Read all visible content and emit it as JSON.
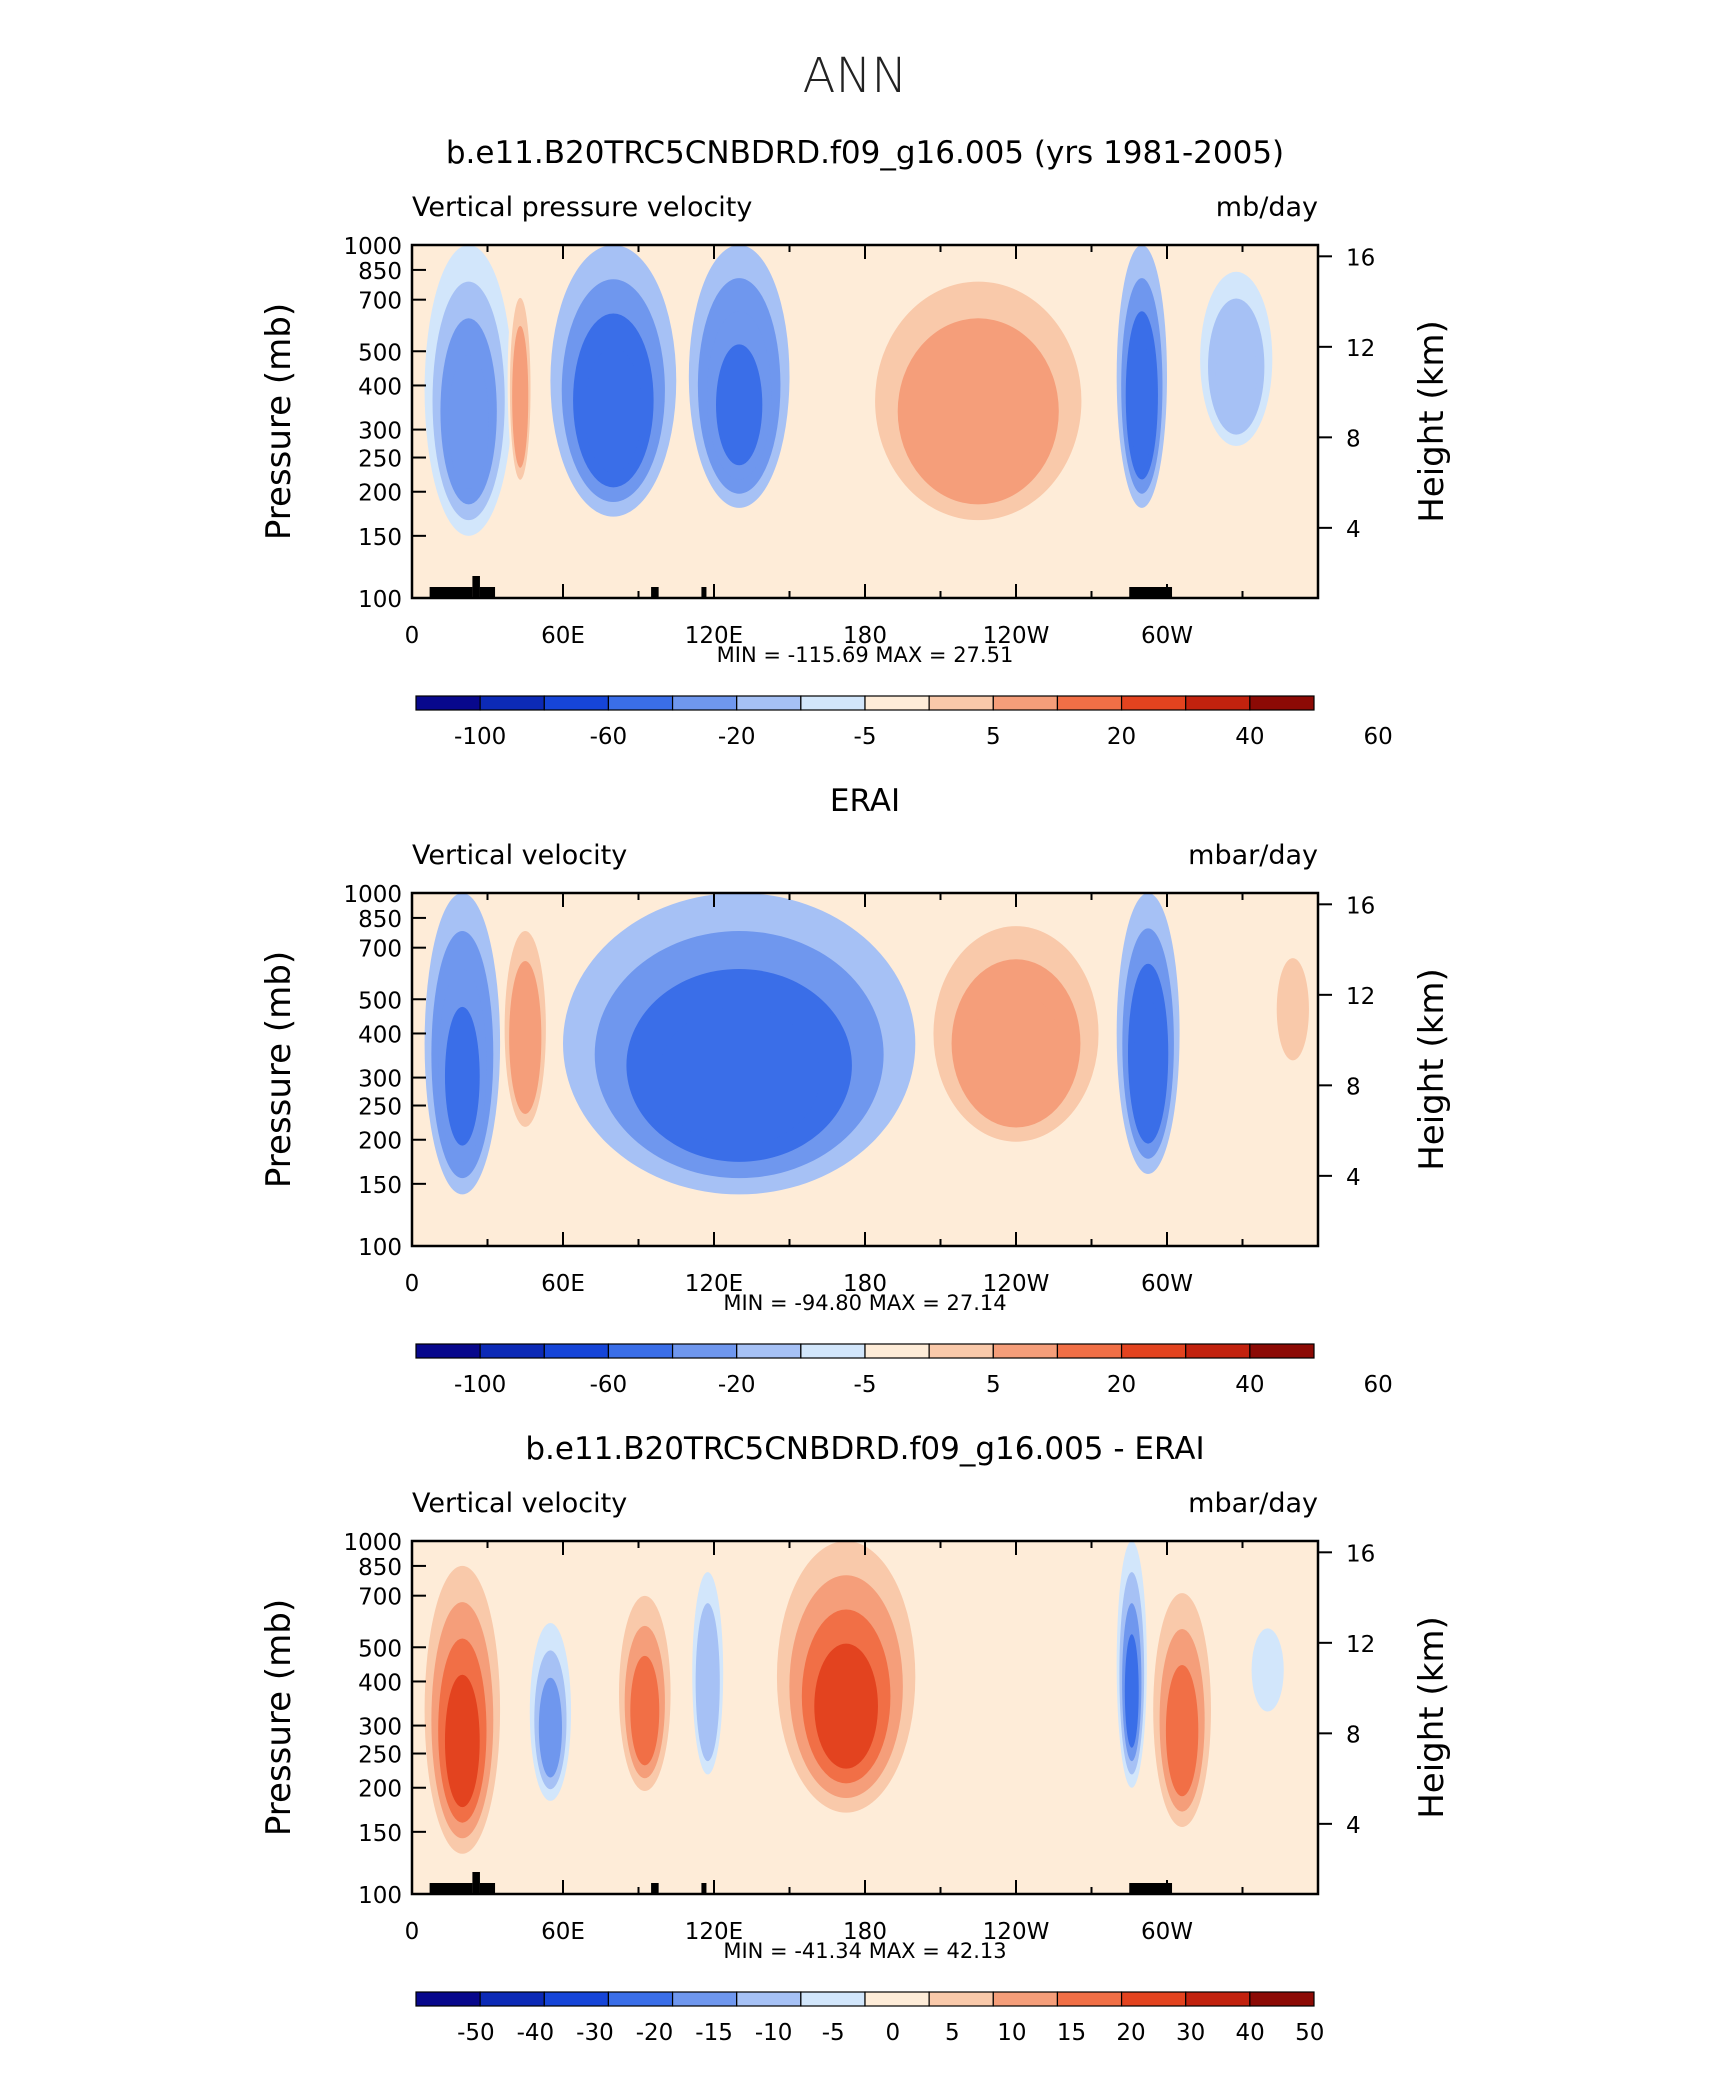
{
  "figure_title": "ANN",
  "axes": {
    "pressure_label": "Pressure (mb)",
    "height_label": "Height (km)",
    "pressure_ticks": [
      "100",
      "150",
      "200",
      "250",
      "300",
      "400",
      "500",
      "700",
      "850",
      "1000"
    ],
    "height_ticks": [
      "16",
      "12",
      "8",
      "4"
    ],
    "lon_ticks": [
      "0",
      "60E",
      "120E",
      "180",
      "120W",
      "60W"
    ]
  },
  "colors": {
    "scale": [
      "#08088c",
      "#0c2ab6",
      "#1645d8",
      "#3a6ee8",
      "#6f97ee",
      "#a6c1f5",
      "#d2e6fb",
      "#feecd8",
      "#f9c9aa",
      "#f59e7a",
      "#f16f46",
      "#e3431f",
      "#c2220e",
      "#8c0a05"
    ]
  },
  "panels": [
    {
      "title": "b.e11.B20TRC5CNBDRD.f09_g16.005 (yrs 1981-2005)",
      "var_label": "Vertical pressure velocity",
      "units": "mb/day",
      "stats": "MIN = -115.69   MAX =   27.51",
      "colorbar_labels": [
        "-100",
        "-60",
        "-20",
        "-5",
        "5",
        "20",
        "40",
        "60"
      ],
      "show_land": true
    },
    {
      "title": "ERAI",
      "var_label": "Vertical velocity",
      "units": "mbar/day",
      "stats": "MIN = -94.80   MAX =   27.14",
      "colorbar_labels": [
        "-100",
        "-60",
        "-20",
        "-5",
        "5",
        "20",
        "40",
        "60"
      ],
      "show_land": false
    },
    {
      "title": "b.e11.B20TRC5CNBDRD.f09_g16.005 - ERAI",
      "var_label": "Vertical velocity",
      "units": "mbar/day",
      "stats": "MIN = -41.34   MAX =   42.13",
      "colorbar_labels": [
        "-50",
        "-40",
        "-30",
        "-20",
        "-15",
        "-10",
        "-5",
        "0",
        "5",
        "10",
        "15",
        "20",
        "30",
        "40",
        "50"
      ],
      "show_land": true
    }
  ],
  "chart_data": [
    {
      "type": "heatmap",
      "title": "b.e11.B20TRC5CNBDRD.f09_g16.005 (yrs 1981-2005)",
      "variable": "Vertical pressure velocity",
      "units": "mb/day",
      "x_axis": "Longitude (0 to 360)",
      "y_axis": "Pressure (mb), 1000 to 100",
      "min": -115.69,
      "max": 27.51,
      "features": [
        {
          "lon": [
            5,
            40
          ],
          "p": [
            1000,
            150
          ],
          "value": -40
        },
        {
          "lon": [
            38,
            48
          ],
          "p": [
            850,
            200
          ],
          "value": 15
        },
        {
          "lon": [
            55,
            105
          ],
          "p": [
            1000,
            170
          ],
          "value": -55
        },
        {
          "lon": [
            110,
            150
          ],
          "p": [
            1000,
            180
          ],
          "value": -50
        },
        {
          "lon": [
            175,
            275
          ],
          "p": [
            1000,
            150
          ],
          "value": 15
        },
        {
          "lon": [
            280,
            300
          ],
          "p": [
            1000,
            180
          ],
          "value": -60
        },
        {
          "lon": [
            310,
            345
          ],
          "p": [
            1000,
            250
          ],
          "value": -15
        }
      ]
    },
    {
      "type": "heatmap",
      "title": "ERAI",
      "variable": "Vertical velocity",
      "units": "mbar/day",
      "x_axis": "Longitude (0 to 360)",
      "y_axis": "Pressure (mb), 1000 to 100",
      "min": -94.8,
      "max": 27.14,
      "features": [
        {
          "lon": [
            5,
            35
          ],
          "p": [
            1000,
            140
          ],
          "value": -50
        },
        {
          "lon": [
            35,
            55
          ],
          "p": [
            950,
            200
          ],
          "value": 15
        },
        {
          "lon": [
            60,
            200
          ],
          "p": [
            1000,
            140
          ],
          "value": -55
        },
        {
          "lon": [
            200,
            280
          ],
          "p": [
            1000,
            180
          ],
          "value": 15
        },
        {
          "lon": [
            280,
            305
          ],
          "p": [
            1000,
            160
          ],
          "value": -55
        },
        {
          "lon": [
            340,
            360
          ],
          "p": [
            850,
            300
          ],
          "value": 8
        }
      ]
    },
    {
      "type": "heatmap",
      "title": "b.e11.B20TRC5CNBDRD.f09_g16.005 - ERAI",
      "variable": "Vertical velocity",
      "units": "mbar/day",
      "x_axis": "Longitude (0 to 360)",
      "y_axis": "Pressure (mb), 1000 to 100",
      "min": -41.34,
      "max": 42.13,
      "features": [
        {
          "lon": [
            5,
            35
          ],
          "p": [
            850,
            130
          ],
          "value": 25
        },
        {
          "lon": [
            45,
            65
          ],
          "p": [
            700,
            170
          ],
          "value": -20
        },
        {
          "lon": [
            80,
            105
          ],
          "p": [
            850,
            180
          ],
          "value": 18
        },
        {
          "lon": [
            110,
            125
          ],
          "p": [
            1000,
            200
          ],
          "value": -15
        },
        {
          "lon": [
            145,
            200
          ],
          "p": [
            1000,
            170
          ],
          "value": 25
        },
        {
          "lon": [
            280,
            292
          ],
          "p": [
            1000,
            200
          ],
          "value": -25
        },
        {
          "lon": [
            292,
            320
          ],
          "p": [
            900,
            140
          ],
          "value": 18
        },
        {
          "lon": [
            330,
            350
          ],
          "p": [
            700,
            300
          ],
          "value": -8
        }
      ]
    }
  ]
}
